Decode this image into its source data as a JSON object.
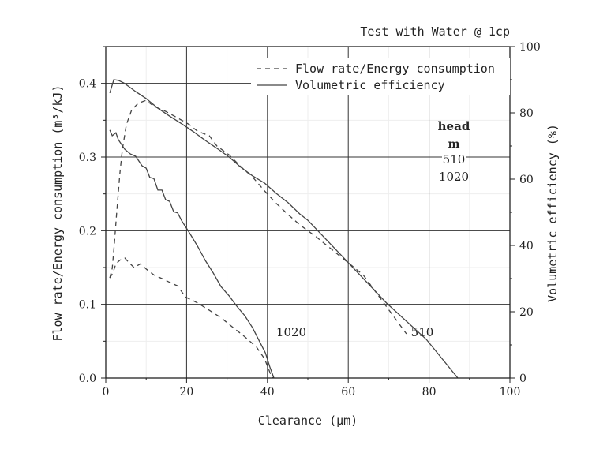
{
  "chart_data": {
    "type": "line",
    "title": "Test with Water @ 1cp",
    "xlabel": "Clearance (μm)",
    "ylabel_left": "Flow rate/Energy consumption (m³/kJ)",
    "ylabel_right": "Volumetric efficiency (%)",
    "xlim": [
      0,
      100
    ],
    "ylim_left": [
      0,
      0.45
    ],
    "ylim_right": [
      0,
      100
    ],
    "x_ticks": [
      "0",
      "20",
      "40",
      "60",
      "80",
      "100"
    ],
    "y_left_ticks": [
      "0.0",
      "0.1",
      "0.2",
      "0.3",
      "0.4"
    ],
    "y_right_ticks": [
      "0",
      "20",
      "40",
      "60",
      "80",
      "100"
    ],
    "grid": true,
    "legend_position": "top-right",
    "legend": [
      {
        "label": "Flow rate/Energy consumption",
        "style": "dashed"
      },
      {
        "label": "Volumetric efficiency",
        "style": "solid"
      }
    ],
    "annotations": {
      "head_title": "head",
      "head_unit": "m",
      "head_values": [
        "510",
        "1020"
      ],
      "curve_label_1020": "1020",
      "curve_label_510": "510"
    },
    "series": [
      {
        "head": "510",
        "style": "solid",
        "axis": "right",
        "x": [
          1,
          2,
          3.1,
          4.5,
          6.1,
          7.4,
          10,
          12.9,
          15.8,
          18.8,
          21.7,
          24.6,
          27.5,
          30.5,
          33.4,
          36.3,
          39.3,
          42.2,
          45.1,
          48,
          50,
          60,
          69.5,
          79.3,
          87.1
        ],
        "y": [
          86,
          90,
          89.8,
          89,
          87.6,
          86.4,
          84.3,
          81.4,
          79,
          76.7,
          74.3,
          71.7,
          69.3,
          66.7,
          63.6,
          61,
          58.8,
          55.7,
          52.9,
          49.5,
          47.6,
          34.8,
          22.6,
          11.7,
          0
        ]
      },
      {
        "head": "510",
        "style": "dashed",
        "axis": "left",
        "x": [
          1,
          1.6,
          2.1,
          2.7,
          3.5,
          4.1,
          5.1,
          6.4,
          8,
          10,
          11.9,
          14.8,
          17.8,
          20.7,
          22.7,
          25.6,
          27.5,
          30.5,
          33.4,
          36.3,
          39.3,
          42.2,
          45.1,
          48,
          52,
          63.7,
          74.4
        ],
        "y": [
          0.136,
          0.149,
          0.181,
          0.224,
          0.278,
          0.31,
          0.344,
          0.364,
          0.373,
          0.377,
          0.369,
          0.362,
          0.353,
          0.344,
          0.335,
          0.329,
          0.315,
          0.303,
          0.287,
          0.273,
          0.254,
          0.237,
          0.222,
          0.208,
          0.192,
          0.14,
          0.06
        ]
      },
      {
        "head": "1020",
        "style": "solid",
        "axis": "right",
        "x": [
          1,
          1.6,
          2.5,
          3.1,
          4.7,
          6.1,
          7.4,
          9,
          10,
          10.9,
          11.9,
          12.9,
          13.9,
          14.8,
          15.8,
          16.8,
          17.8,
          18.8,
          20.7,
          22.7,
          24.6,
          26.6,
          28.5,
          30.5,
          32.4,
          34.4,
          36.3,
          37.9,
          39.5,
          40.6,
          41.6
        ],
        "y": [
          74.8,
          73.1,
          74,
          71.9,
          69,
          67.6,
          66.9,
          64,
          63.3,
          60.5,
          60.2,
          56.7,
          56.7,
          53.8,
          53.3,
          50.2,
          49.8,
          47.4,
          43.8,
          39.8,
          35.5,
          31.7,
          27.6,
          24.8,
          21.7,
          18.8,
          15.2,
          11.4,
          7.6,
          3.3,
          0
        ]
      },
      {
        "head": "1020",
        "style": "dashed",
        "axis": "left",
        "x": [
          1,
          1.8,
          2.5,
          3.5,
          4.7,
          5.5,
          7,
          8.6,
          10,
          11.9,
          13.9,
          15.8,
          17.8,
          19.7,
          22.7,
          25.6,
          28.5,
          31.4,
          34.4,
          37.3,
          39.3,
          40.8,
          41.4
        ],
        "y": [
          0.136,
          0.143,
          0.155,
          0.16,
          0.163,
          0.158,
          0.15,
          0.155,
          0.148,
          0.14,
          0.135,
          0.13,
          0.125,
          0.11,
          0.102,
          0.092,
          0.082,
          0.069,
          0.056,
          0.042,
          0.026,
          0.005,
          0
        ]
      }
    ]
  }
}
